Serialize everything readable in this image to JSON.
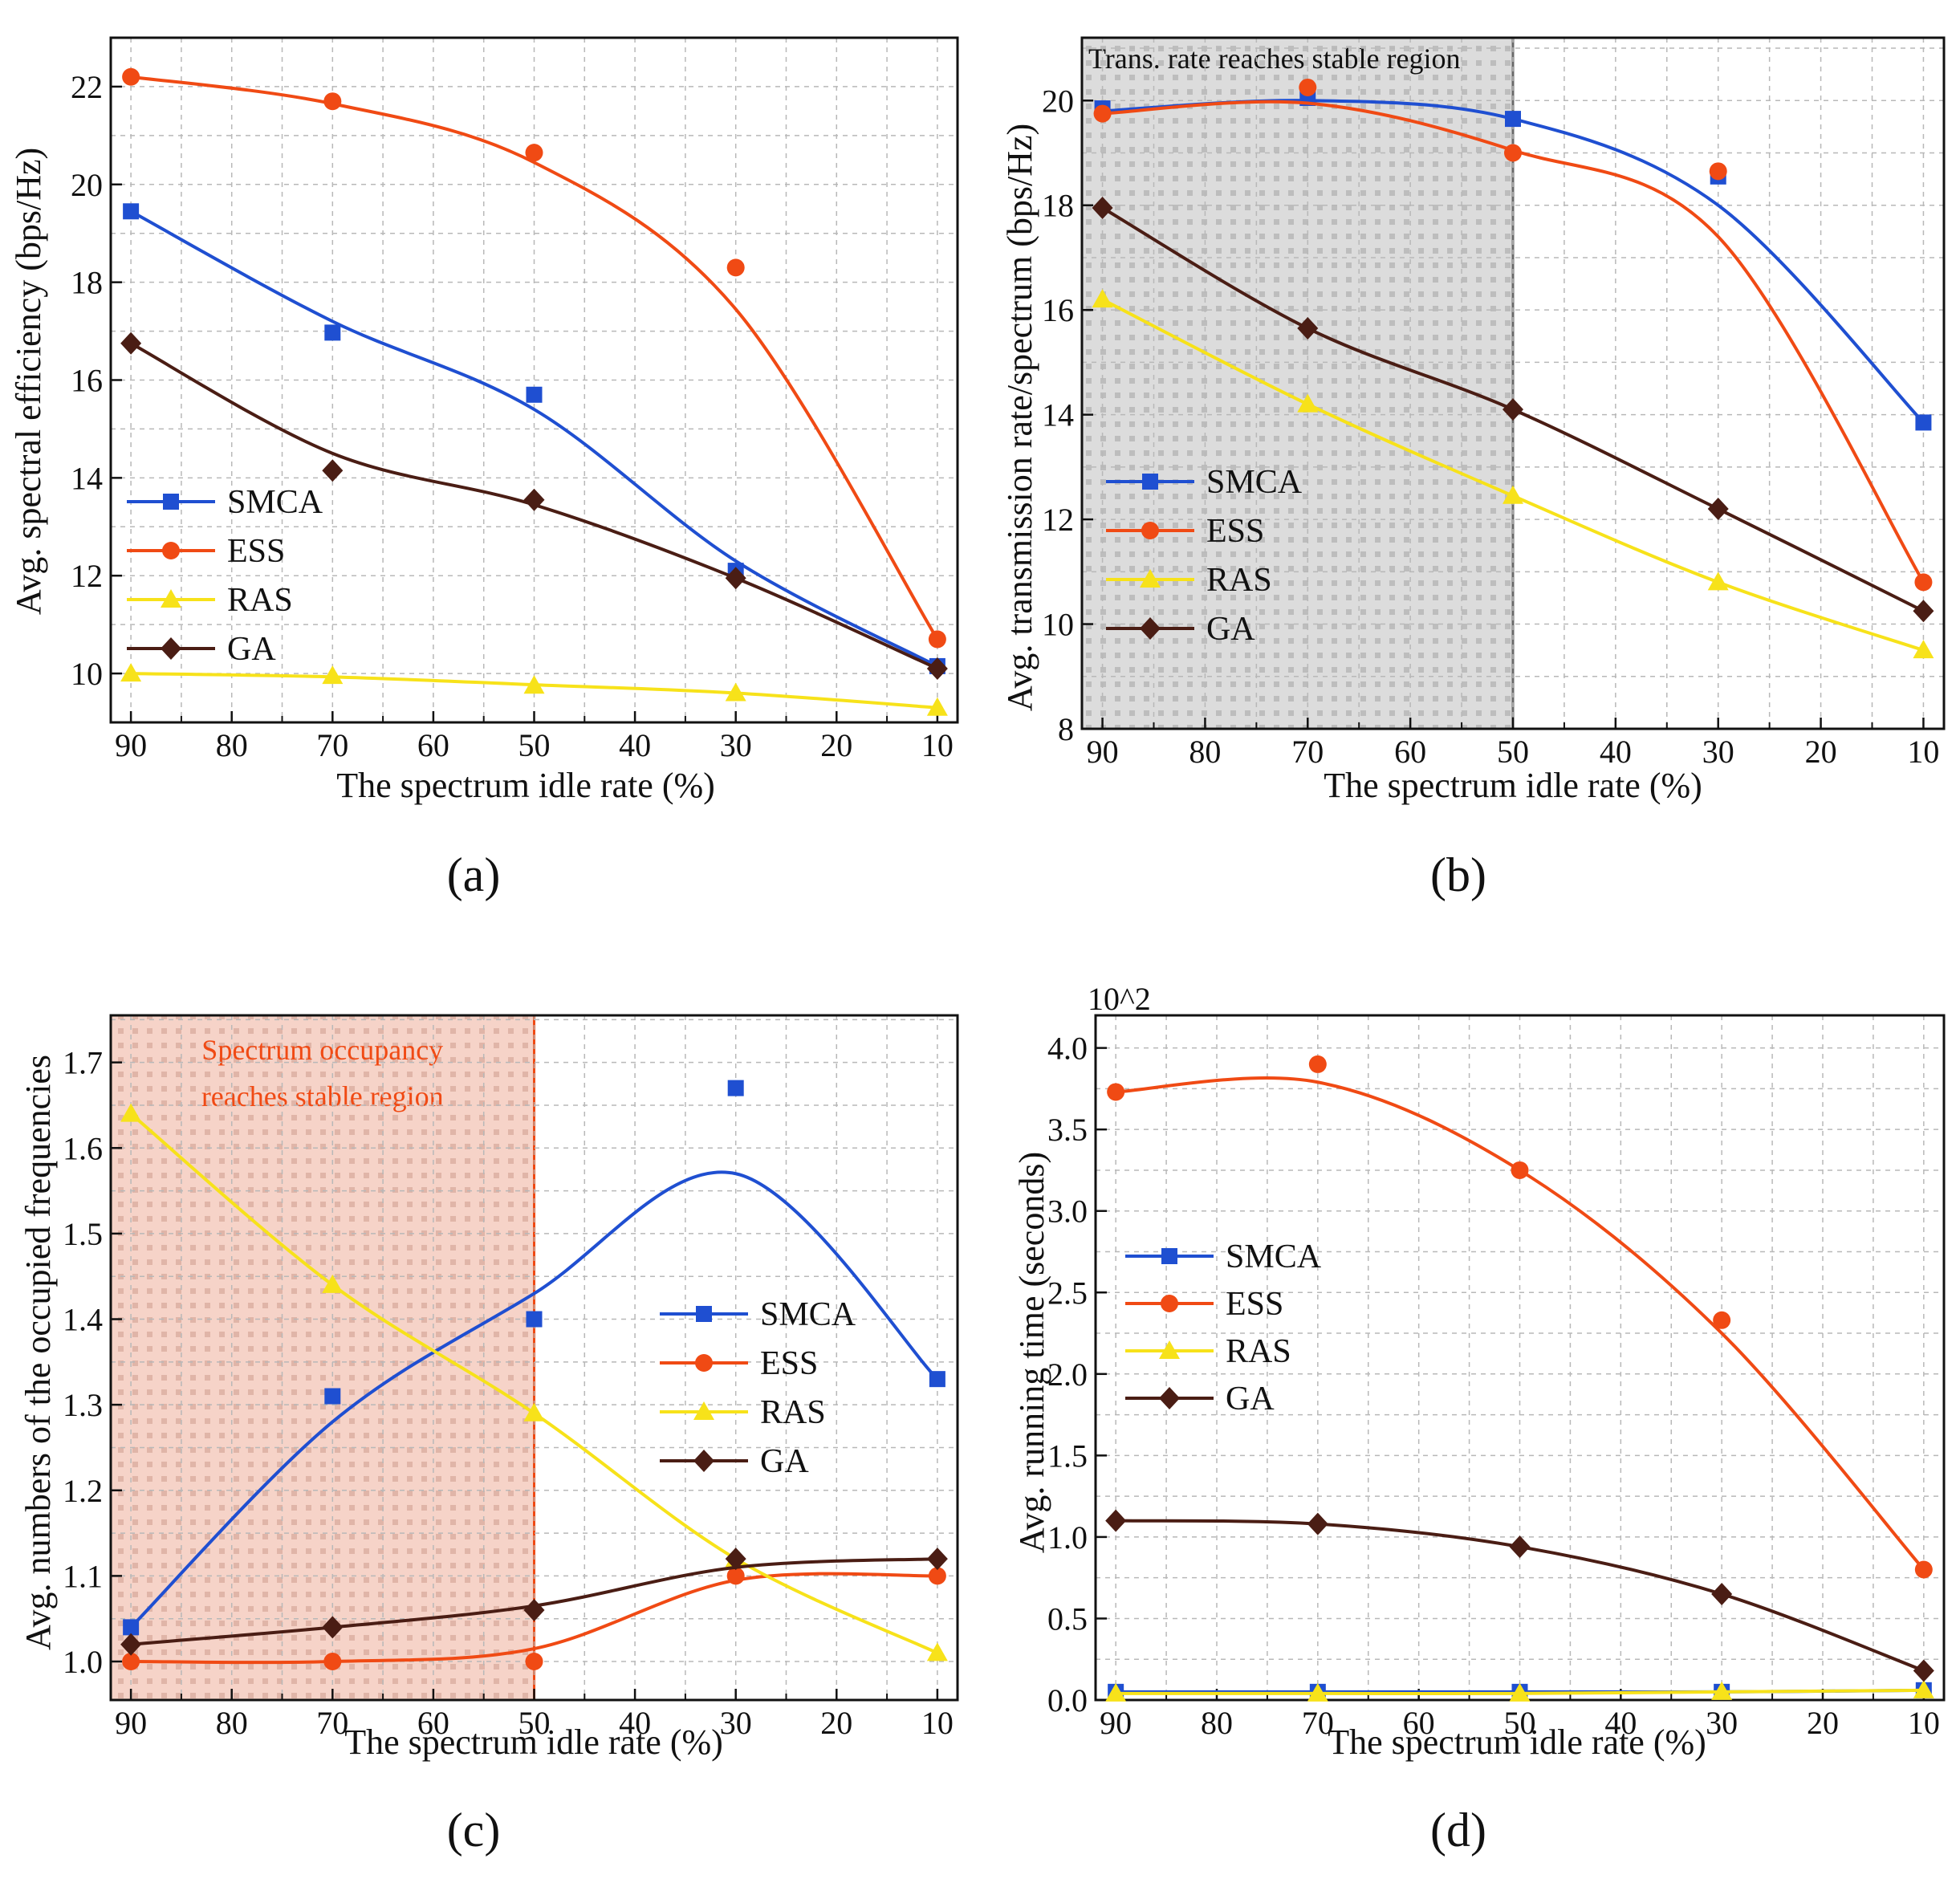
{
  "colors": {
    "SMCA": "#1f4fd1",
    "ESS": "#f04a14",
    "RAS": "#f7e21a",
    "GA": "#4a1d14",
    "region_gray": "#dcdcdc",
    "region_pink": "#f6d3c8",
    "annotation_red": "#f04a14"
  },
  "chart_data": [
    {
      "id": "a",
      "caption": "(a)",
      "type": "line",
      "xlabel": "The spectrum idle rate (%)",
      "ylabel": "Avg. spectral efficiency (bps/Hz)",
      "xlim": [
        92,
        8
      ],
      "ylim": [
        9,
        23
      ],
      "xticks": [
        90,
        80,
        70,
        60,
        50,
        40,
        30,
        20,
        10
      ],
      "yticks": [
        10,
        12,
        14,
        16,
        18,
        20,
        22
      ],
      "ytick_labels": [
        "10",
        "12",
        "14",
        "16",
        "18",
        "20",
        "22"
      ],
      "x": [
        90,
        70,
        50,
        30,
        10
      ],
      "legend_position": "center-left",
      "series": [
        {
          "name": "SMCA",
          "marker": "square",
          "values": [
            19.45,
            16.97,
            15.7,
            12.1,
            10.15
          ],
          "fit": [
            19.45,
            17.2,
            15.4,
            12.3,
            10.15
          ]
        },
        {
          "name": "ESS",
          "marker": "circle",
          "values": [
            22.2,
            21.7,
            20.65,
            18.3,
            10.7
          ],
          "fit": [
            22.2,
            21.65,
            20.45,
            17.45,
            10.7
          ]
        },
        {
          "name": "RAS",
          "marker": "triangle",
          "values": [
            10.0,
            9.95,
            9.75,
            9.6,
            9.3
          ],
          "fit": [
            10.0,
            9.93,
            9.77,
            9.6,
            9.3
          ]
        },
        {
          "name": "GA",
          "marker": "diamond",
          "values": [
            16.75,
            14.15,
            13.55,
            11.95,
            10.1
          ],
          "fit": [
            16.75,
            14.5,
            13.45,
            11.95,
            10.1
          ]
        }
      ],
      "shaded_region": null
    },
    {
      "id": "b",
      "caption": "(b)",
      "type": "line",
      "xlabel": "The spectrum idle rate (%)",
      "ylabel": "Avg. transmission rate/spectrum (bps/Hz)",
      "xlim": [
        92,
        8
      ],
      "ylim": [
        8,
        21.2
      ],
      "xticks": [
        90,
        80,
        70,
        60,
        50,
        40,
        30,
        20,
        10
      ],
      "yticks": [
        8,
        10,
        12,
        14,
        16,
        18,
        20
      ],
      "ytick_labels": [
        "8",
        "10",
        "12",
        "14",
        "16",
        "18",
        "20"
      ],
      "x": [
        90,
        70,
        50,
        30,
        10
      ],
      "legend_position": "center-left",
      "series": [
        {
          "name": "SMCA",
          "marker": "square",
          "values": [
            19.85,
            20.05,
            19.65,
            18.55,
            13.85
          ],
          "fit": [
            19.8,
            20.0,
            19.65,
            18.0,
            13.85
          ]
        },
        {
          "name": "ESS",
          "marker": "circle",
          "values": [
            19.75,
            20.25,
            19.0,
            18.65,
            10.8
          ],
          "fit": [
            19.75,
            19.95,
            19.05,
            17.4,
            10.8
          ]
        },
        {
          "name": "RAS",
          "marker": "triangle",
          "values": [
            16.2,
            14.2,
            12.45,
            10.8,
            9.5
          ],
          "fit": [
            16.2,
            14.2,
            12.45,
            10.8,
            9.5
          ]
        },
        {
          "name": "GA",
          "marker": "diamond",
          "values": [
            17.95,
            15.65,
            14.1,
            12.2,
            10.25
          ],
          "fit": [
            17.95,
            15.65,
            14.1,
            12.2,
            10.25
          ]
        }
      ],
      "shaded_region": {
        "from": 92,
        "to": 50,
        "label_lines": [
          "Trans. rate reaches stable region"
        ],
        "style": "gray"
      }
    },
    {
      "id": "c",
      "caption": "(c)",
      "type": "line",
      "xlabel": "The spectrum idle rate (%)",
      "ylabel": "Avg. numbers of the occupied frequencies",
      "xlim": [
        92,
        8
      ],
      "ylim": [
        0.955,
        1.755
      ],
      "xticks": [
        90,
        80,
        70,
        60,
        50,
        40,
        30,
        20,
        10
      ],
      "yticks": [
        1.0,
        1.1,
        1.2,
        1.3,
        1.4,
        1.5,
        1.6,
        1.7
      ],
      "ytick_labels": [
        "1.0",
        "1.1",
        "1.2",
        "1.3",
        "1.4",
        "1.5",
        "1.6",
        "1.7"
      ],
      "x": [
        90,
        70,
        50,
        30,
        10
      ],
      "legend_position": "right",
      "series": [
        {
          "name": "SMCA",
          "marker": "square",
          "values": [
            1.04,
            1.31,
            1.4,
            1.67,
            1.33
          ],
          "fit": [
            1.04,
            1.28,
            1.43,
            1.57,
            1.33
          ]
        },
        {
          "name": "ESS",
          "marker": "circle",
          "values": [
            1.0,
            1.0,
            1.0,
            1.1,
            1.1
          ],
          "fit": [
            1.0,
            1.0,
            1.015,
            1.095,
            1.1
          ]
        },
        {
          "name": "RAS",
          "marker": "triangle",
          "values": [
            1.64,
            1.44,
            1.29,
            1.12,
            1.01
          ],
          "fit": [
            1.64,
            1.44,
            1.29,
            1.12,
            1.01
          ]
        },
        {
          "name": "GA",
          "marker": "diamond",
          "values": [
            1.02,
            1.04,
            1.06,
            1.12,
            1.12
          ],
          "fit": [
            1.02,
            1.04,
            1.065,
            1.11,
            1.12
          ]
        }
      ],
      "shaded_region": {
        "from": 92,
        "to": 50,
        "label_lines": [
          "Spectrum occupancy",
          "reaches stable region"
        ],
        "style": "pink"
      }
    },
    {
      "id": "d",
      "caption": "(d)",
      "type": "line",
      "xlabel": "The spectrum idle rate (%)",
      "ylabel": "Avg. running time (seconds)",
      "multiplier_label": "10^2",
      "xlim": [
        92,
        8
      ],
      "ylim": [
        0,
        4.2
      ],
      "xticks": [
        90,
        80,
        70,
        60,
        50,
        40,
        30,
        20,
        10
      ],
      "yticks": [
        0,
        0.5,
        1.0,
        1.5,
        2.0,
        2.5,
        3.0,
        3.5,
        4.0
      ],
      "ytick_labels": [
        "0.0",
        "0.5",
        "1.0",
        "1.5",
        "2.0",
        "2.5",
        "3.0",
        "3.5",
        "4.0"
      ],
      "x": [
        90,
        70,
        50,
        30,
        10
      ],
      "legend_position": "center-left",
      "series": [
        {
          "name": "SMCA",
          "marker": "square",
          "values": [
            0.05,
            0.05,
            0.05,
            0.05,
            0.06
          ],
          "fit": [
            0.05,
            0.05,
            0.05,
            0.05,
            0.06
          ]
        },
        {
          "name": "ESS",
          "marker": "circle",
          "values": [
            3.73,
            3.9,
            3.25,
            2.33,
            0.8
          ],
          "fit": [
            3.73,
            3.79,
            3.25,
            2.25,
            0.8
          ]
        },
        {
          "name": "RAS",
          "marker": "triangle",
          "values": [
            0.04,
            0.04,
            0.04,
            0.05,
            0.06
          ],
          "fit": [
            0.04,
            0.04,
            0.04,
            0.05,
            0.06
          ]
        },
        {
          "name": "GA",
          "marker": "diamond",
          "values": [
            1.1,
            1.08,
            0.94,
            0.65,
            0.18
          ],
          "fit": [
            1.1,
            1.08,
            0.94,
            0.65,
            0.18
          ]
        }
      ],
      "shaded_region": null
    }
  ]
}
